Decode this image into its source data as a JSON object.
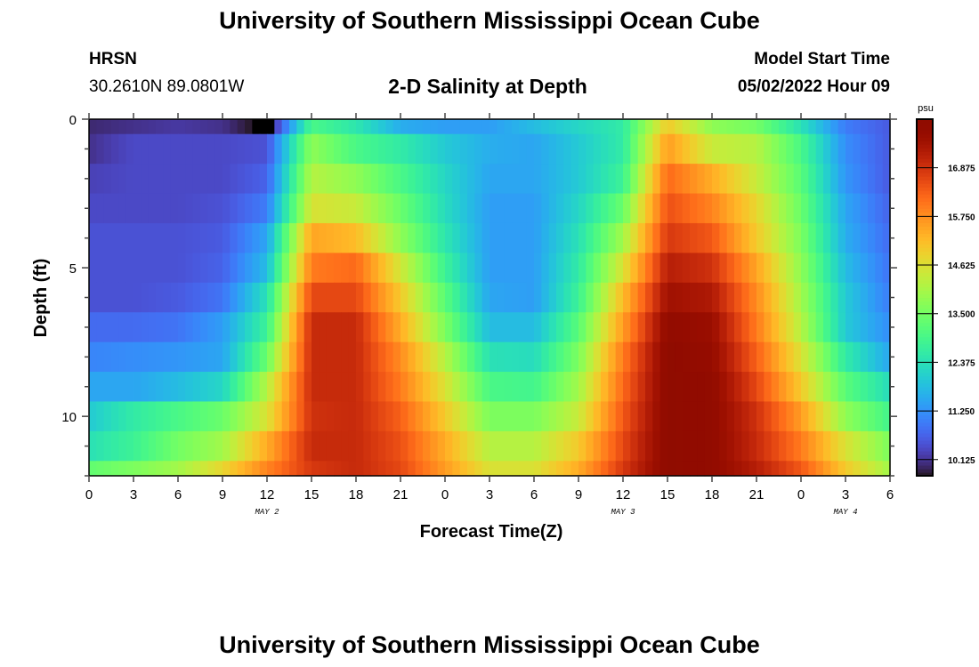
{
  "header": {
    "title": "University of Southern Mississippi Ocean Cube",
    "station": "HRSN",
    "location": "30.2610N  89.0801W",
    "plot_title": "2-D Salinity at Depth",
    "model_start_label": "Model Start Time",
    "model_start_value": "05/02/2022 Hour 09"
  },
  "footer": {
    "title": "University of Southern Mississippi Ocean Cube"
  },
  "chart_data": {
    "type": "heatmap",
    "title": "2-D Salinity at Depth",
    "xlabel": "Forecast Time(Z)",
    "ylabel": "Depth (ft)",
    "x_hours_since_start": [
      0,
      3,
      6,
      9,
      12,
      15,
      18,
      21,
      24,
      27,
      30,
      33,
      36,
      39,
      42,
      45,
      48,
      51,
      54
    ],
    "xlim": [
      0,
      54
    ],
    "x_tick_labels": [
      "0",
      "3",
      "6",
      "9",
      "12",
      "15",
      "18",
      "21",
      "0",
      "3",
      "6",
      "9",
      "12",
      "15",
      "18",
      "21",
      "0",
      "3",
      "6"
    ],
    "date_labels": [
      {
        "hour": 12,
        "label": "MAY 2"
      },
      {
        "hour": 36,
        "label": "MAY 3"
      },
      {
        "hour": 51,
        "label": "MAY 4"
      }
    ],
    "depths_ft": [
      0,
      1,
      2,
      3,
      4,
      5,
      6,
      7,
      8,
      9,
      10,
      11,
      12
    ],
    "ylim": [
      0,
      12
    ],
    "y_tick_labels": [
      {
        "value": 0,
        "label": "0"
      },
      {
        "value": 5,
        "label": "5"
      },
      {
        "value": 10,
        "label": "10"
      }
    ],
    "values": [
      [
        10.0,
        10.1,
        10.2,
        10.1,
        9.6,
        13.0,
        12.5,
        11.6,
        11.4,
        11.4,
        11.8,
        12.2,
        12.6,
        15.0,
        13.8,
        13.5,
        12.4,
        11.0,
        10.6
      ],
      [
        10.1,
        10.4,
        10.4,
        10.4,
        10.5,
        13.8,
        13.0,
        12.6,
        12.0,
        11.6,
        11.5,
        12.0,
        12.6,
        15.6,
        14.4,
        14.2,
        13.0,
        11.2,
        10.6
      ],
      [
        10.3,
        10.4,
        10.4,
        10.4,
        10.7,
        14.2,
        13.8,
        13.0,
        12.2,
        11.5,
        11.5,
        12.0,
        12.8,
        16.2,
        15.4,
        14.4,
        13.2,
        11.3,
        10.6
      ],
      [
        10.4,
        10.4,
        10.4,
        10.5,
        11.0,
        14.6,
        14.4,
        13.4,
        12.3,
        11.4,
        11.4,
        12.2,
        13.4,
        16.5,
        15.9,
        14.8,
        13.4,
        11.5,
        10.7
      ],
      [
        10.5,
        10.5,
        10.5,
        10.6,
        11.5,
        15.5,
        15.2,
        13.8,
        12.5,
        11.4,
        11.4,
        12.4,
        14.0,
        16.8,
        16.4,
        15.0,
        13.6,
        11.6,
        10.8
      ],
      [
        10.5,
        10.5,
        10.5,
        10.7,
        11.8,
        16.0,
        16.2,
        14.5,
        12.8,
        11.4,
        11.4,
        12.6,
        14.6,
        17.2,
        16.9,
        15.5,
        13.8,
        11.8,
        10.9
      ],
      [
        10.5,
        10.5,
        10.6,
        10.9,
        12.4,
        16.6,
        16.6,
        15.0,
        13.2,
        11.5,
        11.4,
        12.8,
        15.2,
        17.5,
        17.3,
        15.8,
        14.0,
        12.0,
        11.0
      ],
      [
        10.8,
        10.8,
        10.9,
        11.4,
        12.8,
        17.0,
        17.0,
        15.4,
        13.6,
        11.8,
        11.8,
        13.2,
        15.6,
        17.8,
        17.6,
        16.0,
        14.2,
        12.0,
        11.2
      ],
      [
        11.1,
        11.2,
        11.3,
        11.5,
        13.4,
        17.0,
        17.0,
        15.8,
        14.2,
        12.4,
        12.3,
        13.6,
        16.0,
        17.9,
        17.7,
        16.3,
        14.6,
        12.6,
        11.5
      ],
      [
        11.5,
        11.5,
        11.8,
        12.2,
        14.2,
        17.0,
        17.0,
        16.0,
        14.6,
        13.0,
        12.9,
        14.0,
        16.2,
        17.9,
        17.8,
        16.6,
        15.0,
        13.2,
        12.3
      ],
      [
        12.0,
        12.6,
        13.0,
        13.4,
        14.6,
        16.9,
        17.0,
        16.3,
        15.0,
        13.6,
        13.6,
        14.4,
        16.4,
        17.9,
        17.8,
        16.9,
        15.6,
        13.8,
        12.9
      ],
      [
        12.4,
        12.8,
        13.5,
        14.0,
        15.4,
        17.0,
        17.0,
        16.5,
        15.4,
        14.2,
        14.2,
        15.0,
        16.6,
        17.9,
        17.8,
        17.0,
        16.0,
        14.6,
        13.6
      ],
      [
        13.3,
        13.6,
        14.0,
        14.8,
        15.9,
        16.8,
        17.0,
        16.6,
        15.6,
        14.6,
        14.6,
        15.4,
        16.8,
        17.9,
        17.8,
        17.2,
        16.4,
        15.0,
        14.0
      ]
    ],
    "colorbar": {
      "label": "psu",
      "vmin": 9.75,
      "vmax": 18.0,
      "ticks": [
        10.125,
        11.25,
        12.375,
        13.5,
        14.625,
        15.75,
        16.875
      ],
      "tick_labels": [
        "10.125",
        "11.250",
        "12.375",
        "13.500",
        "14.625",
        "15.750",
        "16.875"
      ],
      "colormap": "turbo"
    }
  }
}
